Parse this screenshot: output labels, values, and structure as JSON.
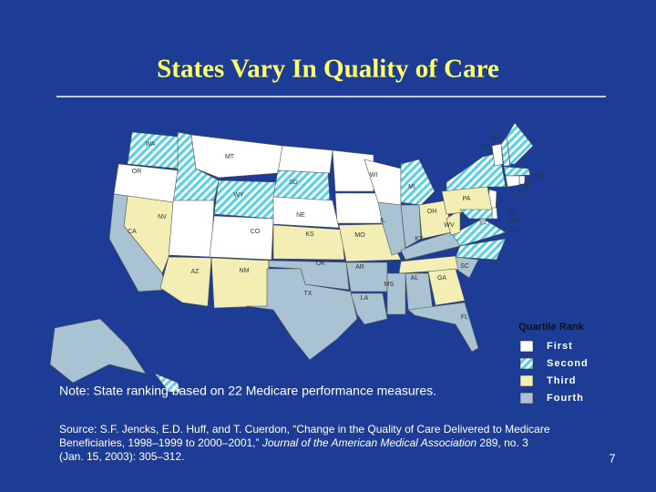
{
  "header": {
    "title": "States Vary In Quality of Care"
  },
  "map": {
    "hatch_color": "#4fd3e6",
    "states": [
      {
        "label": "WA",
        "color": "hatch"
      },
      {
        "label": "OR",
        "color": "#ffffff"
      },
      {
        "label": "MT",
        "color": "#ffffff"
      },
      {
        "label": "WY",
        "color": "hatch"
      },
      {
        "label": "SD",
        "color": "hatch"
      },
      {
        "label": "NE",
        "color": "#ffffff"
      },
      {
        "label": "CO",
        "color": "#ffffff"
      },
      {
        "label": "NV",
        "color": "#f3eeb4"
      },
      {
        "label": "CA",
        "color": "#a9c3d2"
      },
      {
        "label": "AZ",
        "color": "#f3eeb4"
      },
      {
        "label": "NM",
        "color": "#f3eeb4"
      },
      {
        "label": "KS",
        "color": "#f3eeb4"
      },
      {
        "label": "OK",
        "color": "#a9c3d2"
      },
      {
        "label": "TX",
        "color": "#a9c3d2"
      },
      {
        "label": "MO",
        "color": "#f3eeb4"
      },
      {
        "label": "AR",
        "color": "#a9c3d2"
      },
      {
        "label": "LA",
        "color": "#a9c3d2"
      },
      {
        "label": "WI",
        "color": "#ffffff"
      },
      {
        "label": "IL",
        "color": "#a9c3d2"
      },
      {
        "label": "MI",
        "color": "hatch"
      },
      {
        "label": "OH",
        "color": "#f3eeb4"
      },
      {
        "label": "KY",
        "color": "#a9c3d2"
      },
      {
        "label": "MS",
        "color": "#a9c3d2"
      },
      {
        "label": "AL",
        "color": "#a9c3d2"
      },
      {
        "label": "GA",
        "color": "#f3eeb4"
      },
      {
        "label": "FL",
        "color": "#a9c3d2"
      },
      {
        "label": "SC",
        "color": "#a9c3d2"
      },
      {
        "label": "WV",
        "color": "#f3eeb4"
      },
      {
        "label": "PA",
        "color": "#f3eeb4"
      },
      {
        "label": "VT",
        "color": "#ffffff"
      },
      {
        "label": "NH",
        "color": "hatch"
      },
      {
        "label": "MA",
        "color": "hatch"
      },
      {
        "label": "RI",
        "color": "#ffffff"
      },
      {
        "label": "CT",
        "color": "#ffffff"
      },
      {
        "label": "DE",
        "color": "#ffffff"
      },
      {
        "label": "MD",
        "color": "hatch"
      },
      {
        "label": "DC",
        "color": "#a9c3d2"
      }
    ],
    "unlabeled_states": [
      {
        "color": "hatch"
      },
      {
        "color": "#ffffff"
      },
      {
        "color": "#ffffff"
      },
      {
        "color": "#ffffff"
      },
      {
        "color": "#ffffff"
      },
      {
        "color": "#a9c3d2"
      },
      {
        "color": "#f3eeb4"
      },
      {
        "color": "hatch"
      },
      {
        "color": "hatch"
      },
      {
        "color": "hatch"
      },
      {
        "color": "hatch"
      },
      {
        "color": "#ffffff"
      },
      {
        "color": "#a9c3d2"
      },
      {
        "color": "hatch"
      }
    ]
  },
  "legend": {
    "title": "Quartile Rank",
    "items": [
      {
        "label": "First",
        "color": "#ffffff"
      },
      {
        "label": "Second",
        "color": "hatch"
      },
      {
        "label": "Third",
        "color": "#f3eeb4"
      },
      {
        "label": "Fourth",
        "color": "#a9c3d2"
      }
    ]
  },
  "note": "Note: State ranking based on 22 Medicare performance measures.",
  "source": {
    "before": "Source: S.F. Jencks, E.D. Huff, and T. Cuerdon, “Change in the Quality of Care Delivered to Medicare Beneficiaries, 1998–1999 to 2000–2001,” ",
    "journal": "Journal of the American Medical Association",
    "after": " 289, no. 3 (Jan. 15, 2003): 305–312."
  },
  "page_number": "7"
}
